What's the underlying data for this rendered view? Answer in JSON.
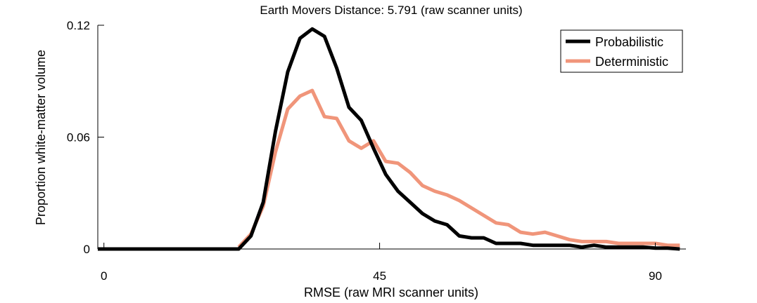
{
  "chart_data": {
    "type": "line",
    "title": "Earth Movers Distance: 5.791 (raw scanner units)",
    "xlabel": "RMSE (raw MRI scanner units)",
    "ylabel": "Proportion white-matter volume",
    "xlim": [
      -1,
      95
    ],
    "ylim": [
      0,
      0.12
    ],
    "xticks": [
      0,
      45,
      90
    ],
    "xtick_labels": [
      "0",
      "45",
      "90"
    ],
    "yticks": [
      0,
      0.06,
      0.12
    ],
    "ytick_labels": [
      "0",
      "0.06",
      "0.12"
    ],
    "grid": false,
    "legend_position": "top-right",
    "series": [
      {
        "name": "Probabilistic",
        "color": "#000000",
        "x": [
          -1,
          22,
          24,
          26,
          28,
          30,
          32,
          34,
          36,
          38,
          40,
          42,
          44,
          46,
          48,
          50,
          52,
          54,
          56,
          58,
          60,
          62,
          64,
          66,
          68,
          70,
          72,
          74,
          76,
          78,
          80,
          82,
          84,
          86,
          88,
          90,
          92,
          94
        ],
        "y": [
          0,
          0,
          0.007,
          0.025,
          0.063,
          0.095,
          0.113,
          0.118,
          0.114,
          0.097,
          0.076,
          0.069,
          0.054,
          0.04,
          0.031,
          0.025,
          0.019,
          0.015,
          0.013,
          0.007,
          0.006,
          0.006,
          0.003,
          0.003,
          0.003,
          0.002,
          0.002,
          0.002,
          0.002,
          0.001,
          0.002,
          0.001,
          0.001,
          0.001,
          0.001,
          0.0005,
          0.0005,
          0
        ]
      },
      {
        "name": "Deterministic",
        "color": "#f0957a",
        "x": [
          22,
          24,
          26,
          28,
          30,
          32,
          34,
          36,
          38,
          40,
          42,
          44,
          46,
          48,
          50,
          52,
          54,
          56,
          58,
          60,
          62,
          64,
          66,
          68,
          70,
          72,
          74,
          76,
          78,
          80,
          82,
          84,
          86,
          88,
          90,
          92,
          94
        ],
        "y": [
          0.001,
          0.008,
          0.023,
          0.052,
          0.075,
          0.082,
          0.085,
          0.071,
          0.07,
          0.058,
          0.054,
          0.058,
          0.047,
          0.046,
          0.041,
          0.034,
          0.031,
          0.029,
          0.026,
          0.022,
          0.018,
          0.014,
          0.013,
          0.009,
          0.008,
          0.009,
          0.007,
          0.005,
          0.004,
          0.004,
          0.004,
          0.003,
          0.003,
          0.003,
          0.003,
          0.002,
          0.002
        ]
      }
    ]
  }
}
